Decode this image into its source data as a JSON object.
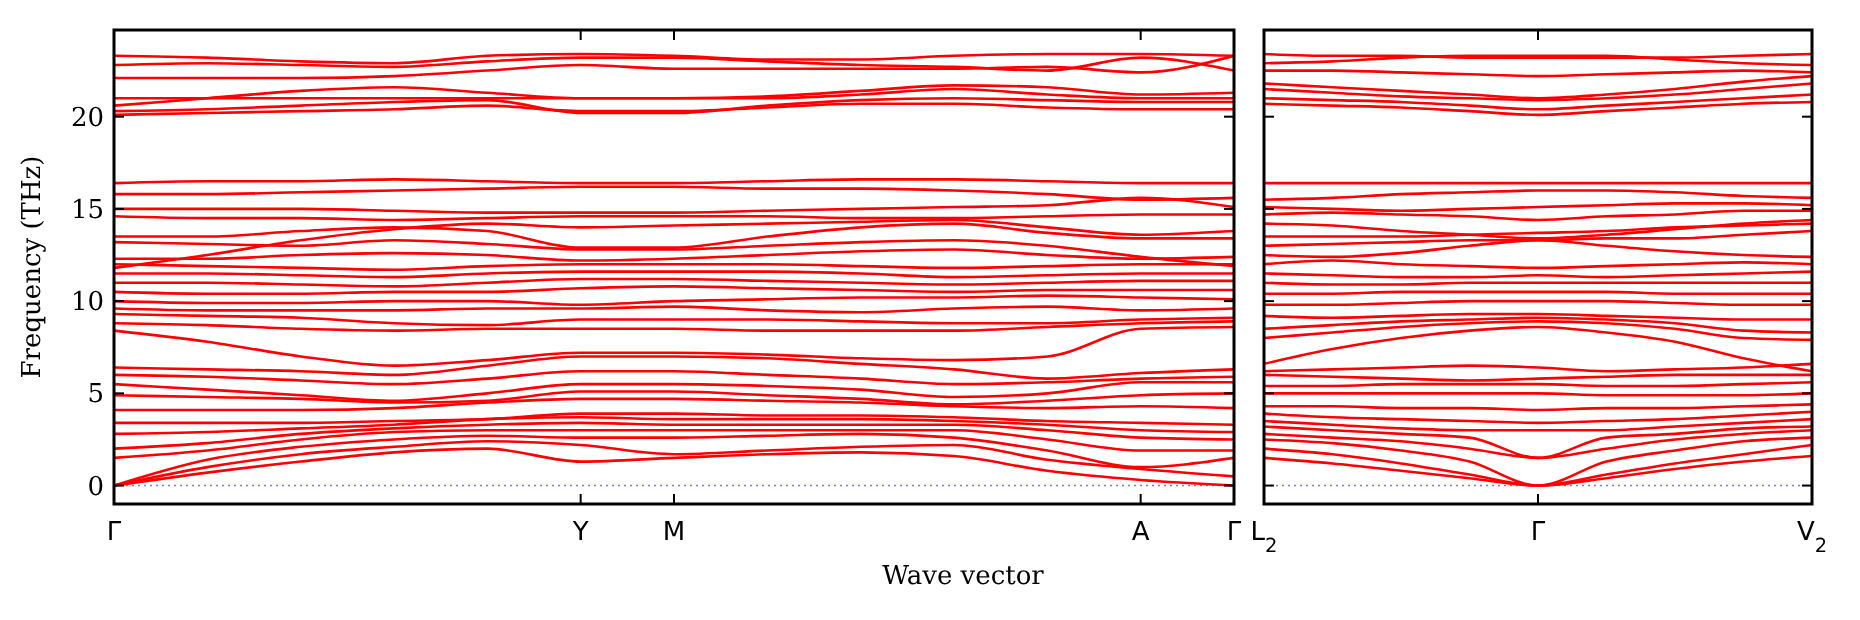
{
  "chart_data": [
    {
      "type": "line",
      "ylabel": "Frequency (THz)",
      "xlabel": "Wave vector",
      "ylim": [
        -1,
        24.7
      ],
      "categories": [
        "Γ",
        null,
        null,
        null,
        null,
        "Y",
        "M",
        null,
        null,
        null,
        null,
        "A",
        "Γ"
      ],
      "yticks": [
        0,
        5,
        10,
        15,
        20
      ],
      "ref_lines": [
        {
          "axis": "y",
          "value": 0,
          "color": "#7777ee",
          "line_style": "dotted"
        }
      ],
      "series": [
        {
          "color": "#ff0000",
          "values": [
            0,
            0.7,
            1.3,
            1.8,
            2.0,
            1.3,
            1.5,
            1.7,
            1.8,
            1.6,
            0.8,
            0.3,
            0
          ]
        },
        {
          "color": "#ff0000",
          "values": [
            0,
            1.0,
            1.7,
            2.1,
            2.4,
            2.2,
            1.7,
            1.9,
            2.1,
            2.2,
            1.4,
            0.9,
            0.5
          ]
        },
        {
          "color": "#ff0000",
          "values": [
            0,
            1.4,
            2.1,
            2.5,
            2.7,
            2.6,
            2.6,
            2.7,
            2.8,
            2.6,
            1.9,
            1.0,
            1.5
          ]
        },
        {
          "color": "#ff0000",
          "values": [
            1.5,
            1.9,
            2.5,
            2.9,
            3.0,
            3.0,
            3.0,
            3.0,
            3.0,
            3.0,
            2.5,
            1.9,
            1.9
          ]
        },
        {
          "color": "#ff0000",
          "values": [
            2.0,
            2.3,
            2.8,
            3.1,
            3.3,
            3.4,
            3.3,
            3.3,
            3.3,
            3.3,
            3.0,
            2.6,
            2.5
          ]
        },
        {
          "color": "#ff0000",
          "values": [
            2.8,
            2.9,
            3.1,
            3.3,
            3.6,
            3.7,
            3.6,
            3.6,
            3.6,
            3.5,
            3.3,
            3.0,
            2.9
          ]
        },
        {
          "color": "#ff0000",
          "values": [
            3.4,
            3.4,
            3.4,
            3.5,
            3.6,
            3.9,
            3.9,
            3.8,
            3.8,
            3.7,
            3.5,
            3.4,
            3.3
          ]
        },
        {
          "color": "#ff0000",
          "values": [
            4.1,
            4.1,
            4.1,
            4.2,
            4.5,
            4.7,
            4.7,
            4.6,
            4.5,
            4.3,
            4.2,
            4.3,
            4.2
          ]
        },
        {
          "color": "#ff0000",
          "values": [
            4.9,
            4.8,
            4.7,
            4.5,
            4.6,
            5.1,
            5.1,
            4.9,
            4.7,
            4.4,
            4.6,
            4.9,
            5.0
          ]
        },
        {
          "color": "#ff0000",
          "values": [
            5.5,
            5.2,
            4.9,
            4.6,
            5.0,
            5.5,
            5.5,
            5.4,
            5.2,
            4.8,
            5.0,
            5.6,
            5.6
          ]
        },
        {
          "color": "#ff0000",
          "values": [
            6.0,
            5.9,
            5.7,
            5.5,
            5.8,
            6.2,
            6.2,
            6.0,
            5.8,
            5.5,
            5.6,
            5.8,
            5.9
          ]
        },
        {
          "color": "#ff0000",
          "values": [
            6.4,
            6.3,
            6.2,
            6.0,
            6.5,
            7.0,
            7.0,
            6.9,
            6.6,
            6.3,
            5.8,
            6.1,
            6.3
          ]
        },
        {
          "color": "#ff0000",
          "values": [
            8.4,
            7.8,
            7.0,
            6.5,
            6.8,
            7.2,
            7.2,
            7.1,
            6.9,
            6.8,
            7.0,
            8.5,
            8.6
          ]
        },
        {
          "color": "#ff0000",
          "values": [
            8.8,
            8.7,
            8.5,
            8.4,
            8.5,
            8.5,
            8.5,
            8.4,
            8.4,
            8.4,
            8.6,
            8.8,
            8.9
          ]
        },
        {
          "color": "#ff0000",
          "values": [
            9.3,
            9.2,
            9.1,
            8.8,
            8.7,
            9.0,
            9.0,
            9.0,
            8.9,
            8.8,
            8.8,
            9.0,
            9.1
          ]
        },
        {
          "color": "#ff0000",
          "values": [
            9.6,
            9.5,
            9.5,
            9.5,
            9.6,
            9.6,
            9.7,
            9.5,
            9.4,
            9.6,
            9.7,
            9.5,
            9.6
          ]
        },
        {
          "color": "#ff0000",
          "values": [
            10.0,
            9.9,
            9.9,
            10.0,
            10.0,
            9.8,
            10.0,
            10.1,
            10.2,
            10.2,
            10.3,
            10.2,
            10.1
          ]
        },
        {
          "color": "#ff0000",
          "values": [
            10.5,
            10.4,
            10.4,
            10.5,
            10.5,
            10.7,
            10.8,
            10.7,
            10.6,
            10.5,
            10.6,
            10.6,
            10.6
          ]
        },
        {
          "color": "#ff0000",
          "values": [
            11.0,
            11.0,
            10.9,
            10.8,
            11.0,
            11.2,
            11.2,
            11.1,
            11.0,
            10.9,
            11.0,
            11.1,
            11.1
          ]
        },
        {
          "color": "#ff0000",
          "values": [
            11.5,
            11.5,
            11.4,
            11.3,
            11.5,
            11.6,
            11.6,
            11.6,
            11.5,
            11.3,
            11.4,
            11.5,
            11.5
          ]
        },
        {
          "color": "#ff0000",
          "values": [
            12.0,
            11.9,
            11.8,
            11.7,
            11.9,
            12.0,
            12.0,
            12.0,
            11.9,
            11.8,
            11.9,
            12.0,
            12.0
          ]
        },
        {
          "color": "#ff0000",
          "values": [
            12.3,
            12.3,
            12.5,
            12.6,
            12.5,
            12.2,
            12.3,
            12.5,
            12.7,
            12.8,
            12.5,
            12.3,
            12.4
          ]
        },
        {
          "color": "#ff0000",
          "values": [
            13.2,
            13.1,
            13.0,
            13.3,
            13.1,
            12.8,
            12.8,
            13.0,
            13.2,
            13.3,
            13.0,
            12.4,
            11.9
          ]
        },
        {
          "color": "#ff0000",
          "values": [
            13.5,
            13.5,
            13.8,
            14.0,
            13.8,
            12.9,
            12.9,
            13.5,
            14.0,
            14.2,
            13.7,
            13.4,
            13.4
          ]
        },
        {
          "color": "#ff0000",
          "values": [
            11.8,
            12.5,
            13.3,
            13.9,
            14.2,
            14.0,
            14.1,
            14.2,
            14.3,
            14.4,
            14.0,
            13.6,
            13.8
          ]
        },
        {
          "color": "#ff0000",
          "values": [
            14.6,
            14.5,
            14.5,
            14.4,
            14.5,
            14.6,
            14.6,
            14.6,
            14.5,
            14.5,
            14.6,
            14.7,
            14.7
          ]
        },
        {
          "color": "#ff0000",
          "values": [
            15.0,
            15.0,
            15.0,
            14.9,
            14.8,
            14.8,
            14.8,
            14.9,
            15.0,
            15.1,
            15.2,
            15.6,
            15.1
          ]
        },
        {
          "color": "#ff0000",
          "values": [
            15.8,
            15.8,
            15.9,
            16.0,
            16.1,
            16.2,
            16.2,
            16.1,
            16.1,
            16.0,
            15.8,
            15.5,
            15.6
          ]
        },
        {
          "color": "#ff0000",
          "values": [
            16.4,
            16.5,
            16.5,
            16.6,
            16.5,
            16.4,
            16.4,
            16.5,
            16.6,
            16.6,
            16.5,
            16.4,
            16.4
          ]
        },
        {
          "color": "#ff0000",
          "values": [
            20.1,
            20.2,
            20.3,
            20.4,
            20.6,
            20.3,
            20.3,
            20.5,
            20.7,
            20.7,
            20.5,
            20.4,
            20.4
          ]
        },
        {
          "color": "#ff0000",
          "values": [
            20.3,
            20.4,
            20.6,
            20.8,
            20.9,
            20.2,
            20.2,
            20.6,
            20.9,
            21.0,
            20.9,
            20.8,
            20.8
          ]
        },
        {
          "color": "#ff0000",
          "values": [
            21.0,
            21.0,
            21.0,
            21.0,
            21.0,
            21.0,
            21.0,
            21.0,
            21.2,
            21.5,
            21.2,
            21.0,
            21.0
          ]
        },
        {
          "color": "#ff0000",
          "values": [
            20.6,
            21.0,
            21.4,
            21.6,
            21.3,
            21.0,
            21.0,
            21.1,
            21.4,
            21.7,
            21.6,
            21.2,
            21.3
          ]
        },
        {
          "color": "#ff0000",
          "values": [
            22.1,
            22.1,
            22.1,
            22.2,
            22.5,
            22.8,
            22.6,
            22.6,
            22.6,
            22.6,
            22.7,
            22.4,
            23.3
          ]
        },
        {
          "color": "#ff0000",
          "values": [
            22.8,
            22.9,
            22.8,
            22.7,
            23.0,
            23.2,
            23.2,
            23.0,
            22.8,
            22.7,
            22.5,
            23.2,
            22.5
          ]
        },
        {
          "color": "#ff0000",
          "values": [
            23.3,
            23.2,
            23.0,
            22.9,
            23.3,
            23.4,
            23.3,
            23.1,
            23.1,
            23.3,
            23.4,
            23.4,
            23.3
          ]
        }
      ]
    },
    {
      "type": "line",
      "ylim": [
        -1,
        24.7
      ],
      "tick_labels": "x",
      "categories": [
        "L$_{2}$",
        null,
        null,
        null,
        "Γ",
        null,
        null,
        null,
        "V$_{2}$"
      ],
      "yticks": [
        0,
        5,
        10,
        15,
        20
      ],
      "ref_lines": [
        {
          "axis": "y",
          "value": 0,
          "color": "#7777ee",
          "line_style": "dotted"
        }
      ],
      "series": [
        {
          "color": "#ff0000",
          "values": [
            1.5,
            1.2,
            0.8,
            0.4,
            0,
            0.4,
            0.9,
            1.3,
            1.6
          ]
        },
        {
          "color": "#ff0000",
          "values": [
            2.0,
            1.7,
            1.2,
            0.6,
            0,
            0.6,
            1.2,
            1.7,
            2.2
          ]
        },
        {
          "color": "#ff0000",
          "values": [
            2.5,
            2.3,
            1.9,
            1.3,
            0,
            1.3,
            1.9,
            2.4,
            2.6
          ]
        },
        {
          "color": "#ff0000",
          "values": [
            2.8,
            2.6,
            2.4,
            2.0,
            1.5,
            2.0,
            2.5,
            2.8,
            3.0
          ]
        },
        {
          "color": "#ff0000",
          "values": [
            3.2,
            3.0,
            2.8,
            2.6,
            1.5,
            2.6,
            2.8,
            3.1,
            3.2
          ]
        },
        {
          "color": "#ff0000",
          "values": [
            3.5,
            3.3,
            3.1,
            3.0,
            3.0,
            3.0,
            3.2,
            3.4,
            3.6
          ]
        },
        {
          "color": "#ff0000",
          "values": [
            3.9,
            3.7,
            3.6,
            3.5,
            3.4,
            3.5,
            3.6,
            3.8,
            4.0
          ]
        },
        {
          "color": "#ff0000",
          "values": [
            4.3,
            4.3,
            4.2,
            4.2,
            4.1,
            4.2,
            4.2,
            4.3,
            4.4
          ]
        },
        {
          "color": "#ff0000",
          "values": [
            5.0,
            5.0,
            5.0,
            5.0,
            5.0,
            4.9,
            4.9,
            4.9,
            5.0
          ]
        },
        {
          "color": "#ff0000",
          "values": [
            5.4,
            5.4,
            5.5,
            5.5,
            5.5,
            5.4,
            5.4,
            5.5,
            5.6
          ]
        },
        {
          "color": "#ff0000",
          "values": [
            6.0,
            5.9,
            5.8,
            5.7,
            5.8,
            5.9,
            6.0,
            6.0,
            6.0
          ]
        },
        {
          "color": "#ff0000",
          "values": [
            6.2,
            6.3,
            6.4,
            6.5,
            6.4,
            6.2,
            6.3,
            6.4,
            6.6
          ]
        },
        {
          "color": "#ff0000",
          "values": [
            6.6,
            7.4,
            8.0,
            8.4,
            8.6,
            8.3,
            7.8,
            6.9,
            6.2
          ]
        },
        {
          "color": "#ff0000",
          "values": [
            8.0,
            8.3,
            8.6,
            8.8,
            8.9,
            8.8,
            8.5,
            8.0,
            7.9
          ]
        },
        {
          "color": "#ff0000",
          "values": [
            8.5,
            8.7,
            8.9,
            9.0,
            9.1,
            9.0,
            8.8,
            8.4,
            8.3
          ]
        },
        {
          "color": "#ff0000",
          "values": [
            9.2,
            9.1,
            9.2,
            9.3,
            9.3,
            9.2,
            9.1,
            9.0,
            9.0
          ]
        },
        {
          "color": "#ff0000",
          "values": [
            9.8,
            9.8,
            9.9,
            10.0,
            10.0,
            10.0,
            9.9,
            9.8,
            9.8
          ]
        },
        {
          "color": "#ff0000",
          "values": [
            10.4,
            10.4,
            10.5,
            10.5,
            10.5,
            10.5,
            10.4,
            10.4,
            10.4
          ]
        },
        {
          "color": "#ff0000",
          "values": [
            11.0,
            10.9,
            10.9,
            11.0,
            11.0,
            11.0,
            11.0,
            11.0,
            11.0
          ]
        },
        {
          "color": "#ff0000",
          "values": [
            11.5,
            11.4,
            11.3,
            11.3,
            11.4,
            11.3,
            11.4,
            11.5,
            11.6
          ]
        },
        {
          "color": "#ff0000",
          "values": [
            12.0,
            12.2,
            12.0,
            11.9,
            11.8,
            11.9,
            12.0,
            12.1,
            12.0
          ]
        },
        {
          "color": "#ff0000",
          "values": [
            12.5,
            12.4,
            12.6,
            13.0,
            13.3,
            13.0,
            12.7,
            12.5,
            12.4
          ]
        },
        {
          "color": "#ff0000",
          "values": [
            13.0,
            13.1,
            13.2,
            13.3,
            13.3,
            13.4,
            13.4,
            13.6,
            13.8
          ]
        },
        {
          "color": "#ff0000",
          "values": [
            13.5,
            13.5,
            13.5,
            13.6,
            13.7,
            13.8,
            14.0,
            14.1,
            14.2
          ]
        },
        {
          "color": "#ff0000",
          "values": [
            14.2,
            14.1,
            13.8,
            13.6,
            13.4,
            13.6,
            13.9,
            14.2,
            14.4
          ]
        },
        {
          "color": "#ff0000",
          "values": [
            14.7,
            14.8,
            14.7,
            14.6,
            14.4,
            14.6,
            14.7,
            14.9,
            14.9
          ]
        },
        {
          "color": "#ff0000",
          "values": [
            15.1,
            15.0,
            14.9,
            15.0,
            15.1,
            15.2,
            15.3,
            15.3,
            15.2
          ]
        },
        {
          "color": "#ff0000",
          "values": [
            15.5,
            15.6,
            15.8,
            15.9,
            16.0,
            16.0,
            15.9,
            15.7,
            15.6
          ]
        },
        {
          "color": "#ff0000",
          "values": [
            16.4,
            16.4,
            16.4,
            16.4,
            16.4,
            16.4,
            16.4,
            16.4,
            16.4
          ]
        },
        {
          "color": "#ff0000",
          "values": [
            20.7,
            20.6,
            20.5,
            20.3,
            20.1,
            20.3,
            20.5,
            20.7,
            20.8
          ]
        },
        {
          "color": "#ff0000",
          "values": [
            21.0,
            20.9,
            20.8,
            20.6,
            20.4,
            20.6,
            20.8,
            21.0,
            21.2
          ]
        },
        {
          "color": "#ff0000",
          "values": [
            21.5,
            21.3,
            21.1,
            21.0,
            20.9,
            21.0,
            21.2,
            21.5,
            21.8
          ]
        },
        {
          "color": "#ff0000",
          "values": [
            21.8,
            21.6,
            21.4,
            21.2,
            21.0,
            21.2,
            21.5,
            21.9,
            22.2
          ]
        },
        {
          "color": "#ff0000",
          "values": [
            22.5,
            22.5,
            22.4,
            22.3,
            22.2,
            22.3,
            22.4,
            22.5,
            22.4
          ]
        },
        {
          "color": "#ff0000",
          "values": [
            22.9,
            23.0,
            23.2,
            23.3,
            23.3,
            23.3,
            23.1,
            22.9,
            22.8
          ]
        },
        {
          "color": "#ff0000",
          "values": [
            23.4,
            23.3,
            23.3,
            23.2,
            23.2,
            23.2,
            23.2,
            23.3,
            23.4
          ]
        }
      ]
    }
  ]
}
